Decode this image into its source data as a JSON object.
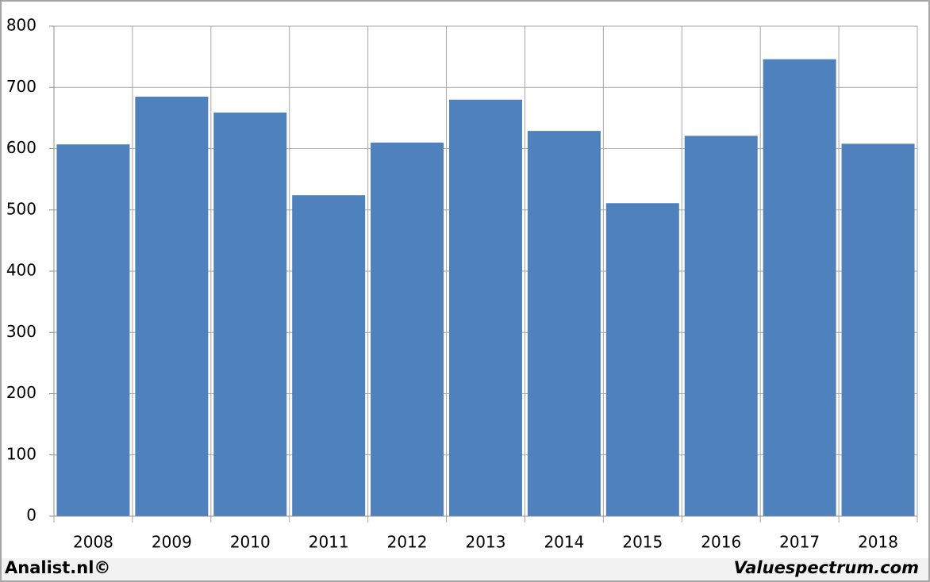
{
  "chart_data": {
    "type": "bar",
    "categories": [
      "2008",
      "2009",
      "2010",
      "2011",
      "2012",
      "2013",
      "2014",
      "2015",
      "2016",
      "2017",
      "2018"
    ],
    "values": [
      607,
      685,
      659,
      524,
      610,
      680,
      629,
      511,
      621,
      746,
      608
    ],
    "color": "#4f81bd",
    "ylim": [
      0,
      800
    ],
    "yticks": [
      0,
      100,
      200,
      300,
      400,
      500,
      600,
      700,
      800
    ],
    "grid": true
  },
  "footer": {
    "left": "Analist.nl©",
    "right": "Valuespectrum.com"
  }
}
